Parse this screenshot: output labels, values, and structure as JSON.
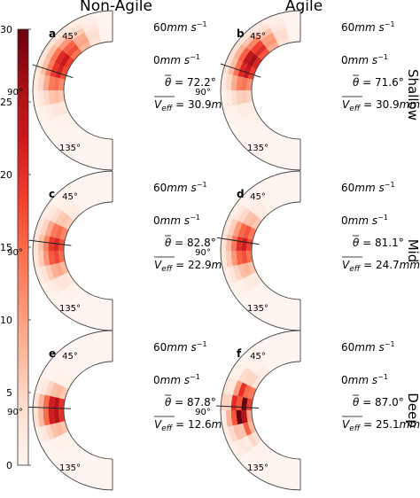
{
  "chart_data": {
    "type": "heatmap",
    "projection": "polar-half",
    "column_titles": [
      "Non-Agile",
      "Agile"
    ],
    "row_labels": [
      "Shallow",
      "Mid",
      "Deep"
    ],
    "radial_tick_labels": {
      "outer": "60mm s⁻¹",
      "inner": "0mm s⁻¹",
      "outer_base": "60",
      "inner_base": "0",
      "unit": "mm s",
      "sup": "−1"
    },
    "angle_ticks": [
      "45°",
      "90°",
      "135°"
    ],
    "colorbar": {
      "ticks": [
        0,
        5,
        10,
        15,
        20,
        25,
        30
      ],
      "range": [
        0,
        30
      ],
      "colormap": "Reds"
    },
    "panels": [
      {
        "letter": "a",
        "row": 0,
        "col": 0,
        "theta": "72.2°",
        "v_eff": "30.9",
        "theta_deg": 72.2,
        "peak_angle": 62,
        "spread": 32,
        "peak_value": 22,
        "noise": 0
      },
      {
        "letter": "b",
        "row": 0,
        "col": 1,
        "theta": "71.6°",
        "v_eff": "30.9",
        "theta_deg": 71.6,
        "peak_angle": 60,
        "spread": 30,
        "peak_value": 25,
        "noise": 0
      },
      {
        "letter": "c",
        "row": 1,
        "col": 0,
        "theta": "82.8°",
        "v_eff": "22.9",
        "theta_deg": 82.8,
        "peak_angle": 86,
        "spread": 26,
        "peak_value": 20,
        "noise": 0
      },
      {
        "letter": "d",
        "row": 1,
        "col": 1,
        "theta": "81.1°",
        "v_eff": "24.7",
        "theta_deg": 81.1,
        "peak_angle": 84,
        "spread": 25,
        "peak_value": 21,
        "noise": 0
      },
      {
        "letter": "e",
        "row": 2,
        "col": 0,
        "theta": "87.8°",
        "v_eff": "12.6",
        "theta_deg": 87.8,
        "peak_angle": 90,
        "spread": 17,
        "peak_value": 27,
        "noise": 0
      },
      {
        "letter": "f",
        "row": 2,
        "col": 1,
        "theta": "87.0°",
        "v_eff": "25.1",
        "theta_deg": 87.0,
        "peak_angle": 88,
        "spread": 24,
        "peak_value": 24,
        "noise": 1
      }
    ]
  }
}
